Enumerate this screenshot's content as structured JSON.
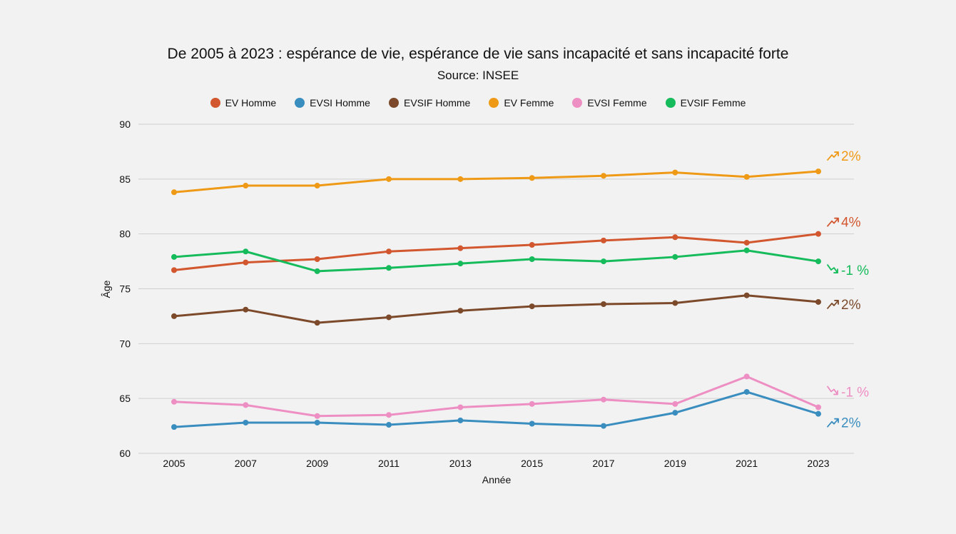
{
  "chart_data": {
    "type": "line",
    "title": "De 2005 à 2023 : espérance de vie, espérance de vie sans incapacité et sans incapacité forte",
    "subtitle": "Source: INSEE",
    "xlabel": "Année",
    "ylabel": "Âge",
    "ylim": [
      60,
      90
    ],
    "yticks": [
      60,
      65,
      70,
      75,
      80,
      85,
      90
    ],
    "grid": true,
    "legend_position": "top",
    "x": [
      "2005",
      "2007",
      "2009",
      "2011",
      "2013",
      "2015",
      "2017",
      "2019",
      "2021",
      "2023"
    ],
    "series": [
      {
        "name": "EV Homme",
        "color": "#d2572f",
        "values": [
          76.7,
          77.4,
          77.7,
          78.4,
          78.7,
          79.0,
          79.4,
          79.7,
          79.2,
          80.0
        ],
        "trend": "up",
        "annotation": "4%"
      },
      {
        "name": "EVSI Homme",
        "color": "#3a8dbf",
        "values": [
          62.4,
          62.8,
          62.8,
          62.6,
          63.0,
          62.7,
          62.5,
          63.7,
          65.6,
          63.6
        ],
        "trend": "up",
        "annotation": "2%"
      },
      {
        "name": "EVSIF Homme",
        "color": "#7c4a2a",
        "values": [
          72.5,
          73.1,
          71.9,
          72.4,
          73.0,
          73.4,
          73.6,
          73.7,
          74.4,
          73.8
        ],
        "trend": "up",
        "annotation": "2%"
      },
      {
        "name": "EV Femme",
        "color": "#ef9a16",
        "values": [
          83.8,
          84.4,
          84.4,
          85.0,
          85.0,
          85.1,
          85.3,
          85.6,
          85.2,
          85.7
        ],
        "trend": "up",
        "annotation": "2%"
      },
      {
        "name": "EVSI Femme",
        "color": "#ee8fc4",
        "values": [
          64.7,
          64.4,
          63.4,
          63.5,
          64.2,
          64.5,
          64.9,
          64.5,
          67.0,
          64.2
        ],
        "trend": "down",
        "annotation": "-1 %"
      },
      {
        "name": "EVSIF Femme",
        "color": "#16bb5c",
        "values": [
          77.9,
          78.4,
          76.6,
          76.9,
          77.3,
          77.7,
          77.5,
          77.9,
          78.5,
          77.5
        ],
        "trend": "down",
        "annotation": "-1 %"
      }
    ]
  }
}
